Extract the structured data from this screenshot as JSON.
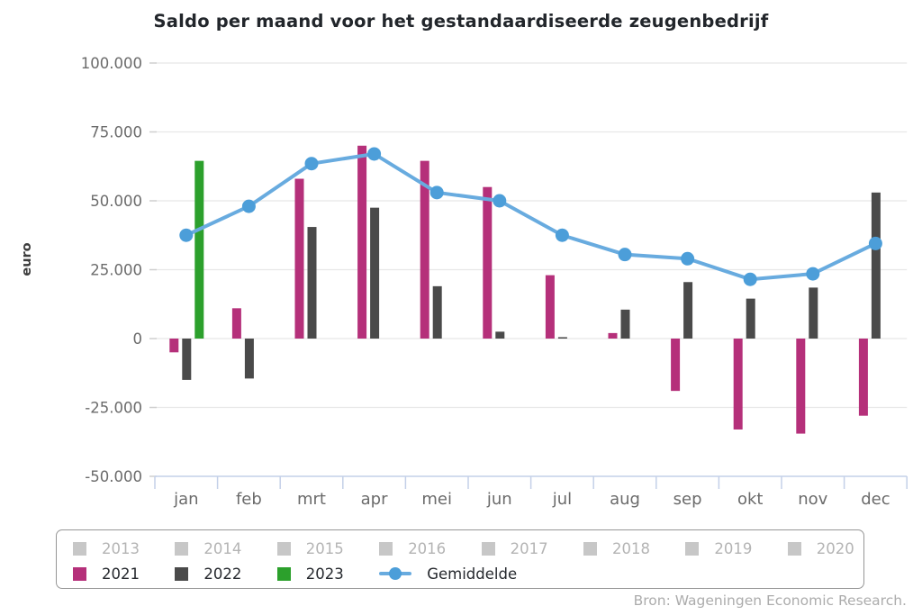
{
  "title": "Saldo per maand voor het gestandaardiseerde zeugenbedrijf",
  "y_axis_title": "euro",
  "source": "Bron: Wageningen Economic Research.",
  "colors": {
    "bar_2021": "#b5307a",
    "bar_2022": "#4a4a4a",
    "bar_2023": "#2ca02c",
    "line_gemiddelde": "#68abdf",
    "marker_gemiddelde": "#4c9ed9",
    "gridline": "#e8e8e8",
    "axis_line": "#c4d0e8",
    "tick_label": "#6b6b6b",
    "disabled_swatch": "#c7c7c7",
    "disabled_text": "#b4b4b4"
  },
  "legend": {
    "disabled_years": [
      "2013",
      "2014",
      "2015",
      "2016",
      "2017",
      "2018",
      "2019",
      "2020"
    ],
    "active_years": [
      {
        "label": "2021",
        "color": "#b5307a"
      },
      {
        "label": "2022",
        "color": "#4a4a4a"
      },
      {
        "label": "2023",
        "color": "#2ca02c"
      }
    ],
    "line_entry": {
      "label": "Gemiddelde",
      "color": "#68abdf"
    }
  },
  "chart_data": {
    "type": "bar",
    "title": "Saldo per maand voor het gestandaardiseerde zeugenbedrijf",
    "xlabel": "",
    "ylabel": "euro",
    "ylim": [
      -50000,
      100000
    ],
    "ytick_step": 25000,
    "ytick_labels": [
      "100.000",
      "75.000",
      "50.000",
      "25.000",
      "0",
      "-25.000",
      "-50.000"
    ],
    "grid": true,
    "legend_position": "bottom",
    "categories": [
      "jan",
      "feb",
      "mrt",
      "apr",
      "mei",
      "jun",
      "jul",
      "aug",
      "sep",
      "okt",
      "nov",
      "dec"
    ],
    "series": [
      {
        "name": "2021",
        "type": "bar",
        "color": "#b5307a",
        "values": [
          -5000,
          11000,
          58000,
          70000,
          64500,
          55000,
          23000,
          2000,
          -19000,
          -33000,
          -34500,
          -28000
        ]
      },
      {
        "name": "2022",
        "type": "bar",
        "color": "#4a4a4a",
        "values": [
          -15000,
          -14500,
          40500,
          47500,
          19000,
          2500,
          500,
          10500,
          20500,
          14500,
          18500,
          53000
        ]
      },
      {
        "name": "2023",
        "type": "bar",
        "color": "#2ca02c",
        "values": [
          64500,
          null,
          null,
          null,
          null,
          null,
          null,
          null,
          null,
          null,
          null,
          null
        ]
      },
      {
        "name": "Gemiddelde",
        "type": "line",
        "color": "#68abdf",
        "values": [
          37500,
          48000,
          63500,
          67000,
          53000,
          50000,
          37500,
          30500,
          29000,
          21500,
          23500,
          34500
        ]
      }
    ]
  }
}
